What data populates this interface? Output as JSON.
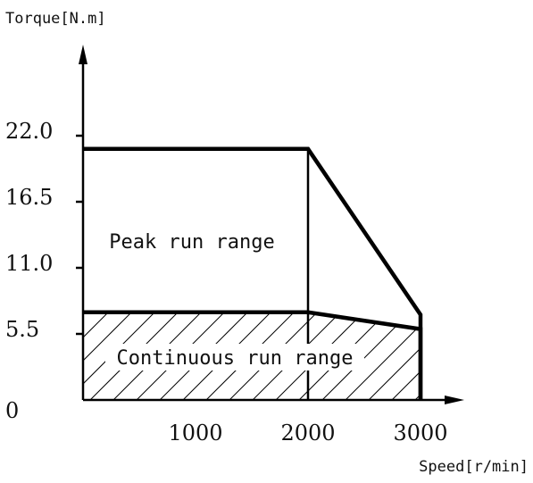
{
  "chart_data": {
    "type": "area",
    "ylabel": "Torque[N.m]",
    "xlabel": "Speed[r/min]",
    "xlim": [
      0,
      3000
    ],
    "ylim": [
      0,
      22.0
    ],
    "x_ticks": [
      {
        "value": 1000,
        "label": "1000"
      },
      {
        "value": 2000,
        "label": "2000"
      },
      {
        "value": 3000,
        "label": "3000"
      }
    ],
    "y_ticks": [
      {
        "value": 0,
        "label": "0"
      },
      {
        "value": 5.5,
        "label": "5.5"
      },
      {
        "value": 11.0,
        "label": "11.0"
      },
      {
        "value": 16.5,
        "label": "16.5"
      },
      {
        "value": 22.0,
        "label": "22.0"
      }
    ],
    "series": [
      {
        "name": "Peak run range",
        "x": [
          0,
          2000,
          3000,
          3000
        ],
        "y": [
          20.9,
          20.9,
          7.1,
          0
        ]
      },
      {
        "name": "Continuous run range",
        "x": [
          0,
          2000,
          3000,
          3000
        ],
        "y": [
          7.3,
          7.3,
          5.9,
          0
        ],
        "hatched": true
      }
    ],
    "grid": false,
    "legend": "none"
  }
}
